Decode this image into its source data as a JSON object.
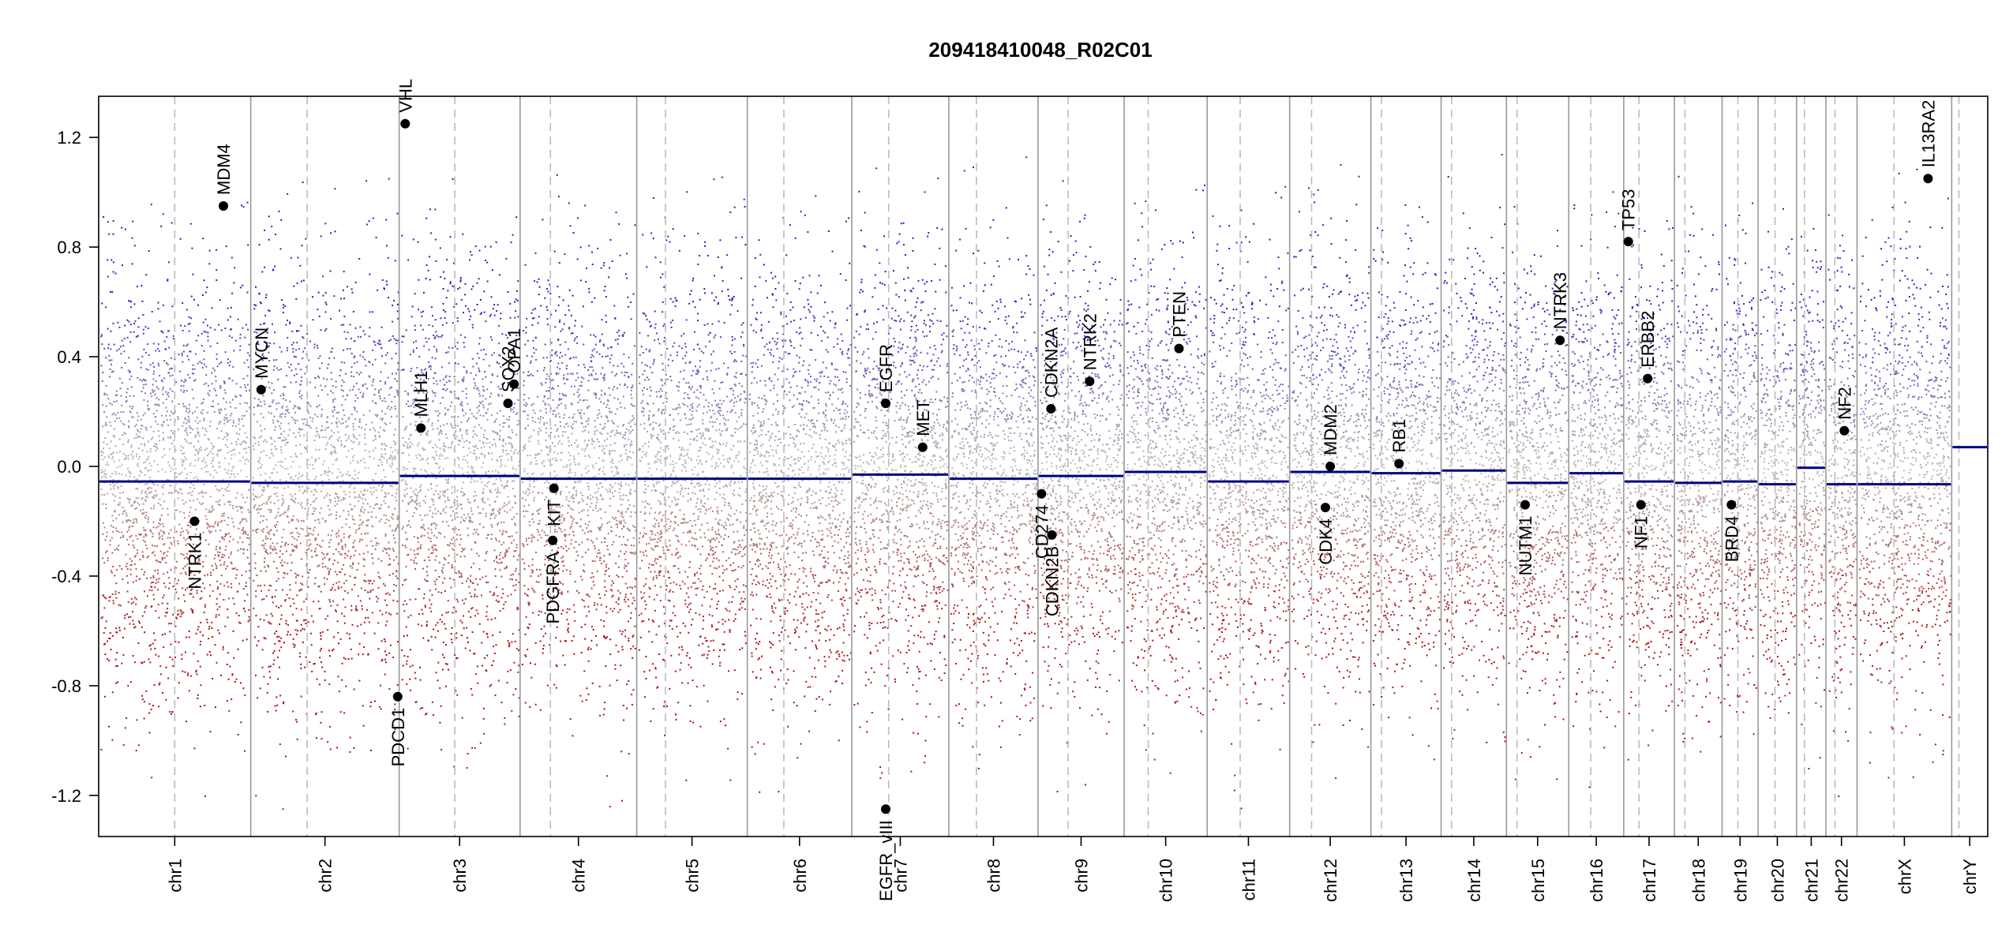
{
  "chart_data": {
    "type": "scatter",
    "title": "209418410048_R02C01",
    "xlabel": "",
    "ylabel": "",
    "ylim": [
      -1.35,
      1.35
    ],
    "y_ticks": [
      "1.2",
      "0.8",
      "0.4",
      "0.0",
      "-0.4",
      "-0.8",
      "-1.2"
    ],
    "y_tick_values": [
      1.2,
      0.8,
      0.4,
      0.0,
      -0.4,
      -0.8,
      -1.2
    ],
    "colors": {
      "gain": "#2222bb",
      "loss": "#aa1111",
      "neutral": "#bbbbbb",
      "segment": "#000080",
      "axis": "#000000",
      "chrom_border": "#999999",
      "centromere": "#bbbbbb"
    },
    "chromosomes": [
      {
        "name": "chr1",
        "length": 249,
        "centromere": 0.5,
        "segment": -0.055
      },
      {
        "name": "chr2",
        "length": 243,
        "centromere": 0.38,
        "segment": -0.06
      },
      {
        "name": "chr3",
        "length": 198,
        "centromere": 0.46,
        "segment": -0.035
      },
      {
        "name": "chr4",
        "length": 191,
        "centromere": 0.26,
        "segment": -0.045
      },
      {
        "name": "chr5",
        "length": 181,
        "centromere": 0.26,
        "segment": -0.045
      },
      {
        "name": "chr6",
        "length": 171,
        "centromere": 0.35,
        "segment": -0.045
      },
      {
        "name": "chr7",
        "length": 159,
        "centromere": 0.38,
        "segment": -0.03
      },
      {
        "name": "chr8",
        "length": 146,
        "centromere": 0.31,
        "segment": -0.045
      },
      {
        "name": "chr9",
        "length": 141,
        "centromere": 0.35,
        "segment": -0.035
      },
      {
        "name": "chr10",
        "length": 136,
        "centromere": 0.29,
        "segment": -0.02
      },
      {
        "name": "chr11",
        "length": 135,
        "centromere": 0.4,
        "segment": -0.055
      },
      {
        "name": "chr12",
        "length": 133,
        "centromere": 0.27,
        "segment": -0.02
      },
      {
        "name": "chr13",
        "length": 115,
        "centromere": 0.15,
        "segment": -0.025
      },
      {
        "name": "chr14",
        "length": 107,
        "centromere": 0.16,
        "segment": -0.015
      },
      {
        "name": "chr15",
        "length": 102,
        "centromere": 0.17,
        "segment": -0.06
      },
      {
        "name": "chr16",
        "length": 90,
        "centromere": 0.4,
        "segment": -0.025
      },
      {
        "name": "chr17",
        "length": 83,
        "centromere": 0.3,
        "segment": -0.055
      },
      {
        "name": "chr18",
        "length": 78,
        "centromere": 0.22,
        "segment": -0.06
      },
      {
        "name": "chr19",
        "length": 59,
        "centromere": 0.44,
        "segment": -0.055
      },
      {
        "name": "chr20",
        "length": 63,
        "centromere": 0.44,
        "segment": -0.065
      },
      {
        "name": "chr21",
        "length": 48,
        "centromere": 0.27,
        "segment": -0.005
      },
      {
        "name": "chr22",
        "length": 51,
        "centromere": 0.29,
        "segment": -0.065
      },
      {
        "name": "chrX",
        "length": 155,
        "centromere": 0.39,
        "segment": -0.065
      },
      {
        "name": "chrY",
        "length": 59,
        "centromere": 0.2,
        "segment": 0.07
      }
    ],
    "genes": [
      {
        "name": "NTRK1",
        "chrom": "chr1",
        "pos": 0.63,
        "value": -0.2
      },
      {
        "name": "MDM4",
        "chrom": "chr1",
        "pos": 0.82,
        "value": 0.95
      },
      {
        "name": "MYCN",
        "chrom": "chr2",
        "pos": 0.07,
        "value": 0.28
      },
      {
        "name": "PDCD1",
        "chrom": "chr2",
        "pos": 0.99,
        "value": -0.84
      },
      {
        "name": "VHL",
        "chrom": "chr3",
        "pos": 0.05,
        "value": 1.25
      },
      {
        "name": "MLH1",
        "chrom": "chr3",
        "pos": 0.18,
        "value": 0.14
      },
      {
        "name": "SOX2",
        "chrom": "chr3",
        "pos": 0.9,
        "value": 0.23
      },
      {
        "name": "OPA1",
        "chrom": "chr3",
        "pos": 0.95,
        "value": 0.3
      },
      {
        "name": "PDGFRA",
        "chrom": "chr4",
        "pos": 0.28,
        "value": -0.27
      },
      {
        "name": "KIT",
        "chrom": "chr4",
        "pos": 0.29,
        "value": -0.08
      },
      {
        "name": "EGFR",
        "chrom": "chr7",
        "pos": 0.35,
        "value": 0.23
      },
      {
        "name": "EGFR_vIII",
        "chrom": "chr7",
        "pos": 0.35,
        "value": -1.25
      },
      {
        "name": "MET",
        "chrom": "chr7",
        "pos": 0.73,
        "value": 0.07
      },
      {
        "name": "CD274",
        "chrom": "chr9",
        "pos": 0.04,
        "value": -0.1
      },
      {
        "name": "CDKN2A",
        "chrom": "chr9",
        "pos": 0.15,
        "value": 0.21
      },
      {
        "name": "CDKN2B",
        "chrom": "chr9",
        "pos": 0.16,
        "value": -0.25
      },
      {
        "name": "NTRK2",
        "chrom": "chr9",
        "pos": 0.6,
        "value": 0.31
      },
      {
        "name": "PTEN",
        "chrom": "chr10",
        "pos": 0.66,
        "value": 0.43
      },
      {
        "name": "MDM2",
        "chrom": "chr12",
        "pos": 0.5,
        "value": 0.0
      },
      {
        "name": "CDK4",
        "chrom": "chr12",
        "pos": 0.44,
        "value": -0.15
      },
      {
        "name": "RB1",
        "chrom": "chr13",
        "pos": 0.4,
        "value": 0.01
      },
      {
        "name": "NUTM1",
        "chrom": "chr15",
        "pos": 0.3,
        "value": -0.14
      },
      {
        "name": "NTRK3",
        "chrom": "chr15",
        "pos": 0.86,
        "value": 0.46
      },
      {
        "name": "TP53",
        "chrom": "chr17",
        "pos": 0.09,
        "value": 0.82
      },
      {
        "name": "NF1",
        "chrom": "chr17",
        "pos": 0.34,
        "value": -0.14
      },
      {
        "name": "ERBB2",
        "chrom": "chr17",
        "pos": 0.47,
        "value": 0.32
      },
      {
        "name": "BRD4",
        "chrom": "chr19",
        "pos": 0.26,
        "value": -0.14
      },
      {
        "name": "NF2",
        "chrom": "chr22",
        "pos": 0.59,
        "value": 0.13
      },
      {
        "name": "IL13RA2",
        "chrom": "chrX",
        "pos": 0.75,
        "value": 1.05
      }
    ]
  }
}
